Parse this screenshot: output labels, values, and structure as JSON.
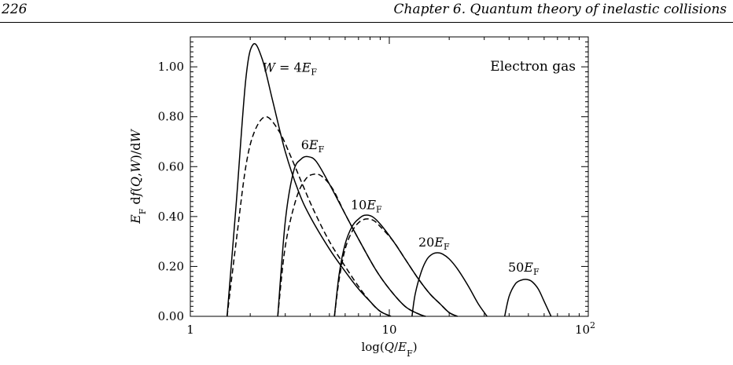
{
  "header": {
    "page_number": "226",
    "running_head": "Chapter 6.  Quantum theory of inelastic collisions"
  },
  "figure": {
    "legend_text": "Electron gas",
    "ylabel": "E_F df(Q,W)/dW",
    "xlabel": "log(Q/E_F)",
    "curve_labels": [
      "W = 4E_F",
      "6E_F",
      "10E_F",
      "20E_F",
      "50E_F"
    ]
  },
  "chart_data": {
    "type": "line",
    "title": "",
    "xlabel": "log(Q/E_F)",
    "ylabel": "E_F df(Q,W)/dW",
    "xscale": "log",
    "xlim": [
      1,
      100
    ],
    "ylim": [
      0,
      1.12
    ],
    "x_tick_labels": [
      "1",
      "10",
      "10^2"
    ],
    "y_tick_labels": [
      "0.00",
      "0.20",
      "0.40",
      "0.60",
      "0.80",
      "1.00"
    ],
    "legend": "top-right",
    "series": [
      {
        "name": "W = 4E_F",
        "style": "solid",
        "x": [
          1.53,
          1.7,
          1.9,
          2.07,
          2.3,
          2.6,
          3.0,
          3.5,
          4.0,
          5.0,
          6.0,
          7.0,
          8.0,
          9.0,
          10.2
        ],
        "y": [
          0.0,
          0.45,
          0.95,
          1.09,
          1.03,
          0.86,
          0.66,
          0.5,
          0.4,
          0.27,
          0.18,
          0.11,
          0.06,
          0.02,
          0.0
        ]
      },
      {
        "name": "W = 4E_F",
        "style": "dashed",
        "x": [
          1.53,
          1.7,
          1.9,
          2.1,
          2.4,
          2.8,
          3.2,
          3.7,
          4.2,
          5.0,
          6.0,
          7.0,
          8.0,
          9.0,
          10.2
        ],
        "y": [
          0.0,
          0.3,
          0.6,
          0.74,
          0.8,
          0.74,
          0.64,
          0.52,
          0.42,
          0.3,
          0.2,
          0.12,
          0.06,
          0.02,
          0.0
        ]
      },
      {
        "name": "6E_F",
        "style": "solid",
        "x": [
          2.75,
          3.0,
          3.3,
          3.6,
          3.9,
          4.3,
          5.0,
          6.0,
          7.0,
          8.5,
          10.0,
          12.0,
          14.0,
          15.2
        ],
        "y": [
          0.0,
          0.38,
          0.58,
          0.63,
          0.64,
          0.62,
          0.53,
          0.41,
          0.31,
          0.19,
          0.11,
          0.04,
          0.01,
          0.0
        ]
      },
      {
        "name": "6E_F",
        "style": "dashed",
        "x": [
          2.75,
          3.0,
          3.4,
          3.8,
          4.2,
          4.6,
          5.2,
          6.0,
          7.0,
          8.5,
          10.0,
          12.0,
          14.0,
          15.2
        ],
        "y": [
          0.0,
          0.28,
          0.47,
          0.55,
          0.57,
          0.56,
          0.51,
          0.41,
          0.31,
          0.19,
          0.11,
          0.04,
          0.01,
          0.0
        ]
      },
      {
        "name": "10E_F",
        "style": "solid",
        "x": [
          5.3,
          5.6,
          6.0,
          6.5,
          7.0,
          7.5,
          8.2,
          9.0,
          10.5,
          12.0,
          14.0,
          16.0,
          18.0,
          20.0,
          22.0
        ],
        "y": [
          0.0,
          0.17,
          0.29,
          0.36,
          0.39,
          0.405,
          0.4,
          0.37,
          0.3,
          0.23,
          0.15,
          0.09,
          0.05,
          0.015,
          0.0
        ]
      },
      {
        "name": "10E_F",
        "style": "dashed",
        "x": [
          5.3,
          5.6,
          6.0,
          6.5,
          7.0,
          7.6,
          8.3,
          9.0,
          10.5,
          12.0,
          14.0,
          16.0,
          18.0,
          20.0,
          22.0
        ],
        "y": [
          0.0,
          0.15,
          0.27,
          0.34,
          0.375,
          0.39,
          0.385,
          0.36,
          0.3,
          0.23,
          0.15,
          0.09,
          0.05,
          0.015,
          0.0
        ]
      },
      {
        "name": "20E_F",
        "style": "solid",
        "x": [
          13.0,
          13.5,
          14.5,
          15.5,
          16.5,
          17.5,
          18.5,
          20.0,
          22.0,
          25.0,
          28.0,
          31.0
        ],
        "y": [
          0.0,
          0.09,
          0.18,
          0.23,
          0.25,
          0.255,
          0.25,
          0.23,
          0.19,
          0.12,
          0.05,
          0.0
        ]
      },
      {
        "name": "50E_F",
        "style": "solid",
        "x": [
          38.0,
          40.0,
          43.0,
          46.0,
          49.0,
          52.0,
          56.0,
          60.0,
          65.0
        ],
        "y": [
          0.0,
          0.08,
          0.13,
          0.145,
          0.148,
          0.14,
          0.11,
          0.06,
          0.0
        ]
      }
    ],
    "annotations": [
      "W = 4E_F",
      "6E_F",
      "10E_F",
      "20E_F",
      "50E_F",
      "Electron gas"
    ]
  }
}
